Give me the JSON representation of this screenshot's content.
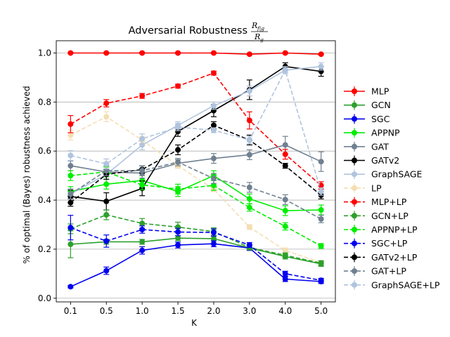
{
  "chart_data": {
    "type": "line",
    "title": "Adversarial Robustness",
    "title_formula": {
      "numerator": "R",
      "numerator_sub": "f|g",
      "denominator": "R",
      "denominator_sub": "g"
    },
    "xlabel": "K",
    "ylabel": "% of optimal (Bayes) robustness achieved",
    "categories": [
      "0.1",
      "0.5",
      "1.0",
      "1.5",
      "2.0",
      "3.0",
      "4.0",
      "5.0"
    ],
    "yticks": [
      "0.0",
      "0.2",
      "0.4",
      "0.6",
      "0.8",
      "1.0"
    ],
    "ylim": [
      -0.015,
      1.05
    ],
    "grid": "horizontal",
    "legend_position": "right",
    "series": [
      {
        "name": "MLP",
        "color": "#ff0000",
        "dashed": false,
        "values": [
          1.0,
          1.0,
          1.0,
          1.0,
          1.0,
          0.995,
          1.0,
          0.995
        ],
        "errors": [
          0.003,
          0.003,
          0.003,
          0.003,
          0.003,
          0.003,
          0.003,
          0.003
        ]
      },
      {
        "name": "GCN",
        "color": "#2ca02c",
        "dashed": false,
        "values": [
          0.22,
          0.23,
          0.23,
          0.245,
          0.243,
          0.205,
          0.17,
          0.14
        ],
        "errors": [
          0.055,
          0.01,
          0.01,
          0.01,
          0.01,
          0.01,
          0.01,
          0.01
        ]
      },
      {
        "name": "SGC",
        "color": "#0000ee",
        "dashed": false,
        "values": [
          0.047,
          0.112,
          0.195,
          0.217,
          0.222,
          0.205,
          0.078,
          0.068
        ],
        "errors": [
          0.005,
          0.015,
          0.015,
          0.012,
          0.012,
          0.01,
          0.01,
          0.008
        ]
      },
      {
        "name": "APPNP",
        "color": "#00ee00",
        "dashed": false,
        "values": [
          0.435,
          0.465,
          0.48,
          0.435,
          0.5,
          0.405,
          0.357,
          0.36
        ],
        "errors": [
          0.02,
          0.02,
          0.02,
          0.02,
          0.02,
          0.02,
          0.02,
          0.02
        ]
      },
      {
        "name": "GAT",
        "color": "#708090",
        "dashed": false,
        "values": [
          0.54,
          0.515,
          0.51,
          0.55,
          0.57,
          0.585,
          0.625,
          0.557
        ],
        "errors": [
          0.02,
          0.02,
          0.02,
          0.015,
          0.02,
          0.02,
          0.035,
          0.04
        ]
      },
      {
        "name": "GATv2",
        "color": "#000000",
        "dashed": false,
        "values": [
          0.415,
          0.395,
          0.448,
          0.68,
          0.765,
          0.85,
          0.945,
          0.925
        ],
        "errors": [
          0.025,
          0.035,
          0.03,
          0.02,
          0.025,
          0.04,
          0.015,
          0.02
        ]
      },
      {
        "name": "GraphSAGE",
        "color": "#b0c4de",
        "dashed": false,
        "values": [
          0.425,
          0.505,
          0.625,
          0.705,
          0.785,
          0.845,
          0.93,
          0.945
        ],
        "errors": [
          0.02,
          0.02,
          0.02,
          0.015,
          0.015,
          0.02,
          0.01,
          0.015
        ]
      },
      {
        "name": "LP",
        "color": "#f5deb3",
        "dashed": true,
        "values": [
          0.665,
          0.74,
          0.645,
          0.54,
          0.445,
          0.29,
          0.195,
          0.145
        ],
        "errors": [
          0.02,
          0.02,
          0.015,
          0.01,
          0.01,
          0.01,
          0.01,
          0.008
        ]
      },
      {
        "name": "MLP+LP",
        "color": "#ff0000",
        "dashed": true,
        "values": [
          0.71,
          0.795,
          0.825,
          0.865,
          0.918,
          0.725,
          0.587,
          0.46
        ],
        "errors": [
          0.035,
          0.015,
          0.01,
          0.008,
          0.008,
          0.035,
          0.02,
          0.015
        ]
      },
      {
        "name": "GCN+LP",
        "color": "#2ca02c",
        "dashed": true,
        "values": [
          0.283,
          0.34,
          0.305,
          0.29,
          0.272,
          0.207,
          0.175,
          0.143
        ],
        "errors": [
          0.02,
          0.02,
          0.02,
          0.02,
          0.015,
          0.01,
          0.01,
          0.01
        ]
      },
      {
        "name": "APPNP+LP",
        "color": "#00ee00",
        "dashed": true,
        "values": [
          0.5,
          0.515,
          0.462,
          0.445,
          0.46,
          0.37,
          0.293,
          0.213
        ],
        "errors": [
          0.02,
          0.02,
          0.02,
          0.02,
          0.02,
          0.015,
          0.015,
          0.01
        ]
      },
      {
        "name": "SGC+LP",
        "color": "#0000ee",
        "dashed": true,
        "values": [
          0.288,
          0.233,
          0.28,
          0.27,
          0.268,
          0.217,
          0.1,
          0.073
        ],
        "errors": [
          0.05,
          0.025,
          0.015,
          0.015,
          0.015,
          0.01,
          0.01,
          0.008
        ]
      },
      {
        "name": "GATv2+LP",
        "color": "#000000",
        "dashed": true,
        "values": [
          0.39,
          0.505,
          0.525,
          0.605,
          0.705,
          0.645,
          0.54,
          0.42
        ],
        "errors": [
          0.015,
          0.02,
          0.015,
          0.02,
          0.015,
          0.02,
          0.01,
          0.015
        ]
      },
      {
        "name": "GAT+LP",
        "color": "#708090",
        "dashed": true,
        "values": [
          0.425,
          0.52,
          0.52,
          0.555,
          0.488,
          0.452,
          0.402,
          0.323
        ],
        "errors": [
          0.02,
          0.02,
          0.02,
          0.015,
          0.02,
          0.02,
          0.02,
          0.015
        ]
      },
      {
        "name": "GraphSAGE+LP",
        "color": "#b0c4de",
        "dashed": true,
        "values": [
          0.582,
          0.548,
          0.65,
          0.698,
          0.685,
          0.645,
          0.93,
          0.435
        ],
        "errors": [
          0.02,
          0.02,
          0.02,
          0.015,
          0.01,
          0.015,
          0.015,
          0.015
        ]
      }
    ]
  }
}
